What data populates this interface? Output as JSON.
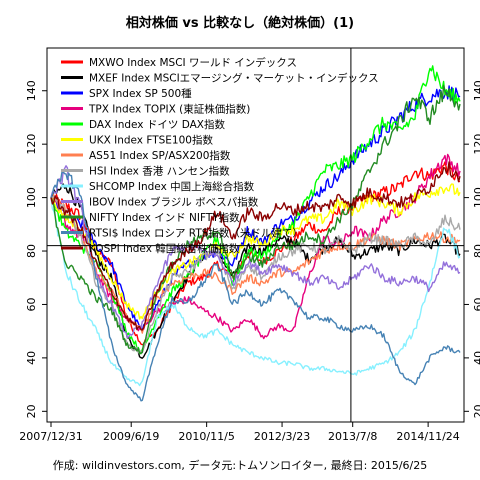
{
  "chart_data": {
    "type": "line",
    "title": "相対株価 vs 比較なし（絶対株価）(1)",
    "caption": "作成: wildinvestors.com, データ元:トムソンロイター, 最終日: 2015/6/25",
    "x_range": [
      "2007-12-31",
      "2015-06-25"
    ],
    "x_tick_labels": [
      "2007/12/31",
      "2009/6/19",
      "2010/11/5",
      "2012/3/23",
      "2013/7/8",
      "2014/11/24"
    ],
    "y_range": [
      16,
      156
    ],
    "y_ticks": [
      20,
      40,
      60,
      80,
      100,
      120,
      140
    ],
    "reference_lines": {
      "vertical_date": "2013-06-26",
      "horizontal_value": 82
    },
    "grid": false,
    "legend_position": "top-left",
    "series": [
      {
        "name": "MXWO Index MSCI ワールド インデックス",
        "color": "#ff0000",
        "values": [
          100,
          97,
          93,
          80,
          75,
          55,
          45,
          50,
          60,
          68,
          70,
          75,
          70,
          79,
          76,
          80,
          84,
          90,
          87,
          95,
          97,
          100,
          102,
          104,
          110,
          108,
          112,
          106
        ]
      },
      {
        "name": "MXEF Index MSCIエマージング・マーケット・インデックス",
        "color": "#000000",
        "values": [
          100,
          105,
          95,
          78,
          70,
          48,
          40,
          50,
          62,
          70,
          78,
          80,
          70,
          82,
          80,
          84,
          84,
          77,
          81,
          84,
          78,
          80,
          82,
          80,
          84,
          82,
          85,
          79
        ]
      },
      {
        "name": "SPX Index SP 500種",
        "color": "#0000ff",
        "values": [
          100,
          93,
          90,
          82,
          75,
          60,
          50,
          60,
          70,
          75,
          78,
          80,
          75,
          88,
          83,
          90,
          92,
          98,
          104,
          108,
          115,
          120,
          125,
          130,
          135,
          138,
          140,
          138
        ]
      },
      {
        "name": "TPX Index TOPIX (東証株価指数)",
        "color": "#e6007e",
        "values": [
          100,
          90,
          85,
          72,
          62,
          55,
          50,
          58,
          60,
          62,
          58,
          55,
          50,
          55,
          48,
          52,
          50,
          70,
          85,
          82,
          88,
          85,
          92,
          95,
          100,
          108,
          115,
          110
        ]
      },
      {
        "name": "DAX Index ドイツ DAX指数",
        "color": "#00ff00",
        "values": [
          100,
          87,
          82,
          75,
          65,
          50,
          42,
          55,
          65,
          70,
          78,
          85,
          68,
          80,
          78,
          86,
          90,
          100,
          110,
          112,
          115,
          122,
          128,
          125,
          130,
          150,
          140,
          136
        ]
      },
      {
        "name": "UKX Index FTSE100指数",
        "color": "#ffff00",
        "values": [
          100,
          92,
          88,
          80,
          70,
          60,
          55,
          65,
          72,
          75,
          78,
          82,
          78,
          85,
          82,
          88,
          88,
          92,
          92,
          98,
          95,
          100,
          98,
          95,
          100,
          102,
          104,
          102
        ]
      },
      {
        "name": "AS51 Index SP/ASX200指数",
        "color": "#ff7f50",
        "values": [
          100,
          95,
          85,
          72,
          65,
          55,
          50,
          62,
          68,
          70,
          72,
          70,
          65,
          70,
          68,
          72,
          72,
          76,
          80,
          82,
          82,
          85,
          84,
          82,
          84,
          86,
          85,
          84
        ]
      },
      {
        "name": "HSI Index 香港 ハンセン指数",
        "color": "#a9a9a9",
        "values": [
          100,
          95,
          85,
          68,
          60,
          45,
          42,
          58,
          70,
          72,
          78,
          80,
          65,
          75,
          70,
          78,
          80,
          82,
          80,
          84,
          80,
          85,
          84,
          82,
          85,
          82,
          92,
          88
        ]
      },
      {
        "name": "SHCOMP Index 中国上海総合指数",
        "color": "#87f0ff",
        "values": [
          100,
          72,
          60,
          50,
          38,
          32,
          30,
          55,
          60,
          52,
          48,
          50,
          45,
          42,
          40,
          38,
          38,
          36,
          36,
          35,
          34,
          36,
          38,
          42,
          50,
          68,
          90,
          78
        ]
      },
      {
        "name": "IBOV Index ブラジル ボベスパ指数",
        "color": "#9370db",
        "values": [
          100,
          110,
          95,
          70,
          60,
          48,
          52,
          68,
          80,
          82,
          80,
          78,
          68,
          76,
          72,
          75,
          72,
          68,
          70,
          66,
          70,
          75,
          70,
          68,
          70,
          66,
          75,
          72
        ]
      },
      {
        "name": "NIFTY Index インド NIFTY指数",
        "color": "#228b22",
        "values": [
          100,
          75,
          70,
          62,
          58,
          45,
          42,
          65,
          75,
          82,
          85,
          88,
          70,
          78,
          75,
          82,
          82,
          86,
          84,
          92,
          98,
          110,
          120,
          128,
          138,
          130,
          140,
          135
        ]
      },
      {
        "name": "RTSI$ Index ロシア RTS指数（米ドル建て）",
        "color": "#4682b4",
        "values": [
          100,
          110,
          100,
          70,
          45,
          30,
          24,
          45,
          62,
          60,
          68,
          75,
          60,
          65,
          60,
          65,
          62,
          55,
          55,
          52,
          50,
          52,
          48,
          35,
          30,
          40,
          44,
          42
        ]
      },
      {
        "name": "KOSPI Index 韓国総合株価指数",
        "color": "#8b0000",
        "values": [
          100,
          95,
          88,
          75,
          65,
          55,
          50,
          65,
          75,
          80,
          85,
          95,
          85,
          95,
          92,
          97,
          95,
          97,
          96,
          100,
          98,
          102,
          100,
          98,
          100,
          104,
          112,
          108
        ]
      }
    ]
  }
}
